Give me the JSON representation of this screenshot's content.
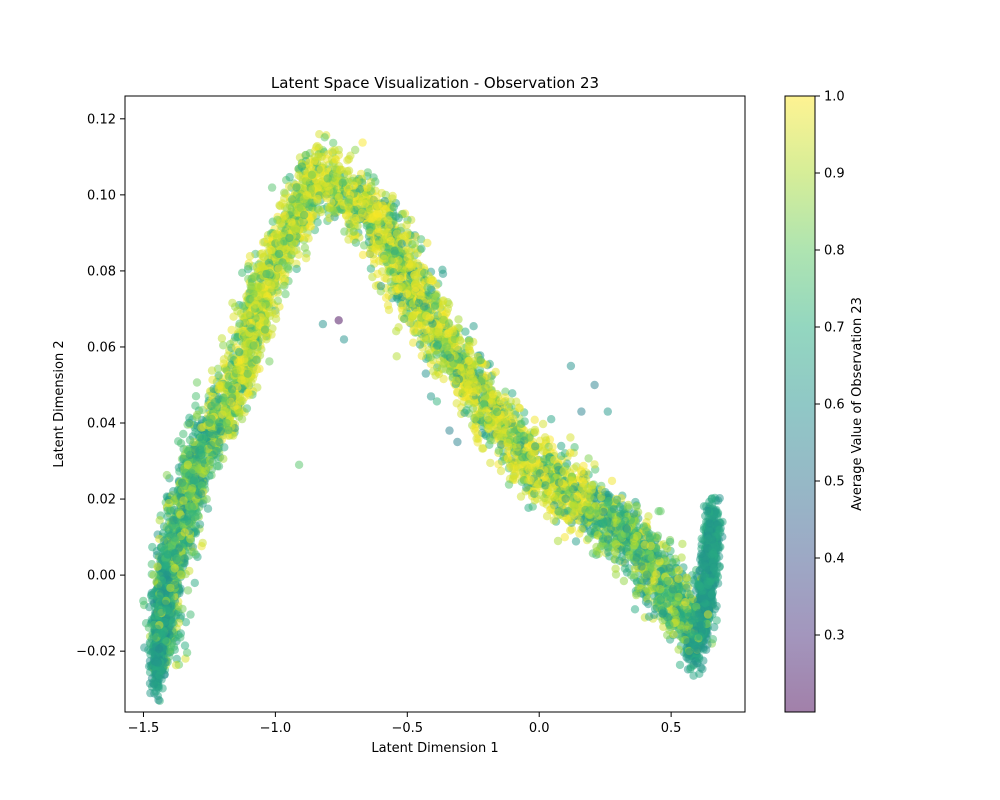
{
  "chart_data": {
    "type": "scatter",
    "title": "Latent Space Visualization - Observation 23",
    "xlabel": "Latent Dimension 1",
    "ylabel": "Latent Dimension 2",
    "xlim": [
      -1.57,
      0.78
    ],
    "ylim": [
      -0.036,
      0.126
    ],
    "xticks": [
      -1.5,
      -1.0,
      -0.5,
      0.0,
      0.5
    ],
    "xtick_labels": [
      "−1.5",
      "−1.0",
      "−0.5",
      "0.0",
      "0.5"
    ],
    "yticks": [
      -0.02,
      0.0,
      0.02,
      0.04,
      0.06,
      0.08,
      0.1,
      0.12
    ],
    "ytick_labels": [
      "−0.02",
      "0.00",
      "0.02",
      "0.04",
      "0.06",
      "0.08",
      "0.10",
      "0.12"
    ],
    "grid": false,
    "colormap": "viridis",
    "marker_alpha": 0.5,
    "colorbar": {
      "label": "Average Value of Observation 23",
      "range": [
        0.2,
        1.0
      ],
      "ticks": [
        0.3,
        0.4,
        0.5,
        0.6,
        0.7,
        0.8,
        0.9,
        1.0
      ],
      "tick_labels": [
        "0.3",
        "0.4",
        "0.5",
        "0.6",
        "0.7",
        "0.8",
        "0.9",
        "1.0"
      ]
    },
    "structure": {
      "left_arm": [
        [
          -1.43,
          -0.02
        ],
        [
          -1.4,
          0.0
        ],
        [
          -1.3,
          0.03
        ],
        [
          -1.15,
          0.05
        ],
        [
          -1.05,
          0.075
        ],
        [
          -0.95,
          0.09
        ],
        [
          -0.85,
          0.105
        ],
        [
          -0.72,
          0.1
        ]
      ],
      "right_arm": [
        [
          -0.72,
          0.1
        ],
        [
          -0.62,
          0.095
        ],
        [
          -0.52,
          0.08
        ],
        [
          -0.4,
          0.065
        ],
        [
          -0.25,
          0.05
        ],
        [
          -0.05,
          0.03
        ],
        [
          0.15,
          0.02
        ],
        [
          0.35,
          0.01
        ],
        [
          0.5,
          -0.005
        ],
        [
          0.6,
          -0.015
        ]
      ],
      "right_tail": [
        [
          0.58,
          -0.02
        ],
        [
          0.62,
          -0.01
        ],
        [
          0.65,
          0.005
        ],
        [
          0.66,
          0.015
        ]
      ],
      "left_tail": [
        [
          -1.45,
          -0.025
        ],
        [
          -1.43,
          -0.01
        ],
        [
          -1.41,
          0.0
        ]
      ]
    },
    "outliers": [
      {
        "x": -0.76,
        "y": 0.067,
        "value": 0.21
      },
      {
        "x": -0.91,
        "y": 0.029,
        "value": 0.78
      },
      {
        "x": -0.34,
        "y": 0.038,
        "value": 0.55
      },
      {
        "x": -0.31,
        "y": 0.035,
        "value": 0.55
      },
      {
        "x": -0.43,
        "y": 0.053,
        "value": 0.6
      },
      {
        "x": -0.41,
        "y": 0.047,
        "value": 0.62
      },
      {
        "x": 0.12,
        "y": 0.055,
        "value": 0.6
      },
      {
        "x": 0.21,
        "y": 0.05,
        "value": 0.55
      },
      {
        "x": 0.16,
        "y": 0.043,
        "value": 0.55
      },
      {
        "x": 0.26,
        "y": 0.043,
        "value": 0.62
      },
      {
        "x": -0.82,
        "y": 0.066,
        "value": 0.6
      },
      {
        "x": -0.74,
        "y": 0.062,
        "value": 0.6
      },
      {
        "x": -0.6,
        "y": 0.076,
        "value": 0.6
      }
    ]
  }
}
